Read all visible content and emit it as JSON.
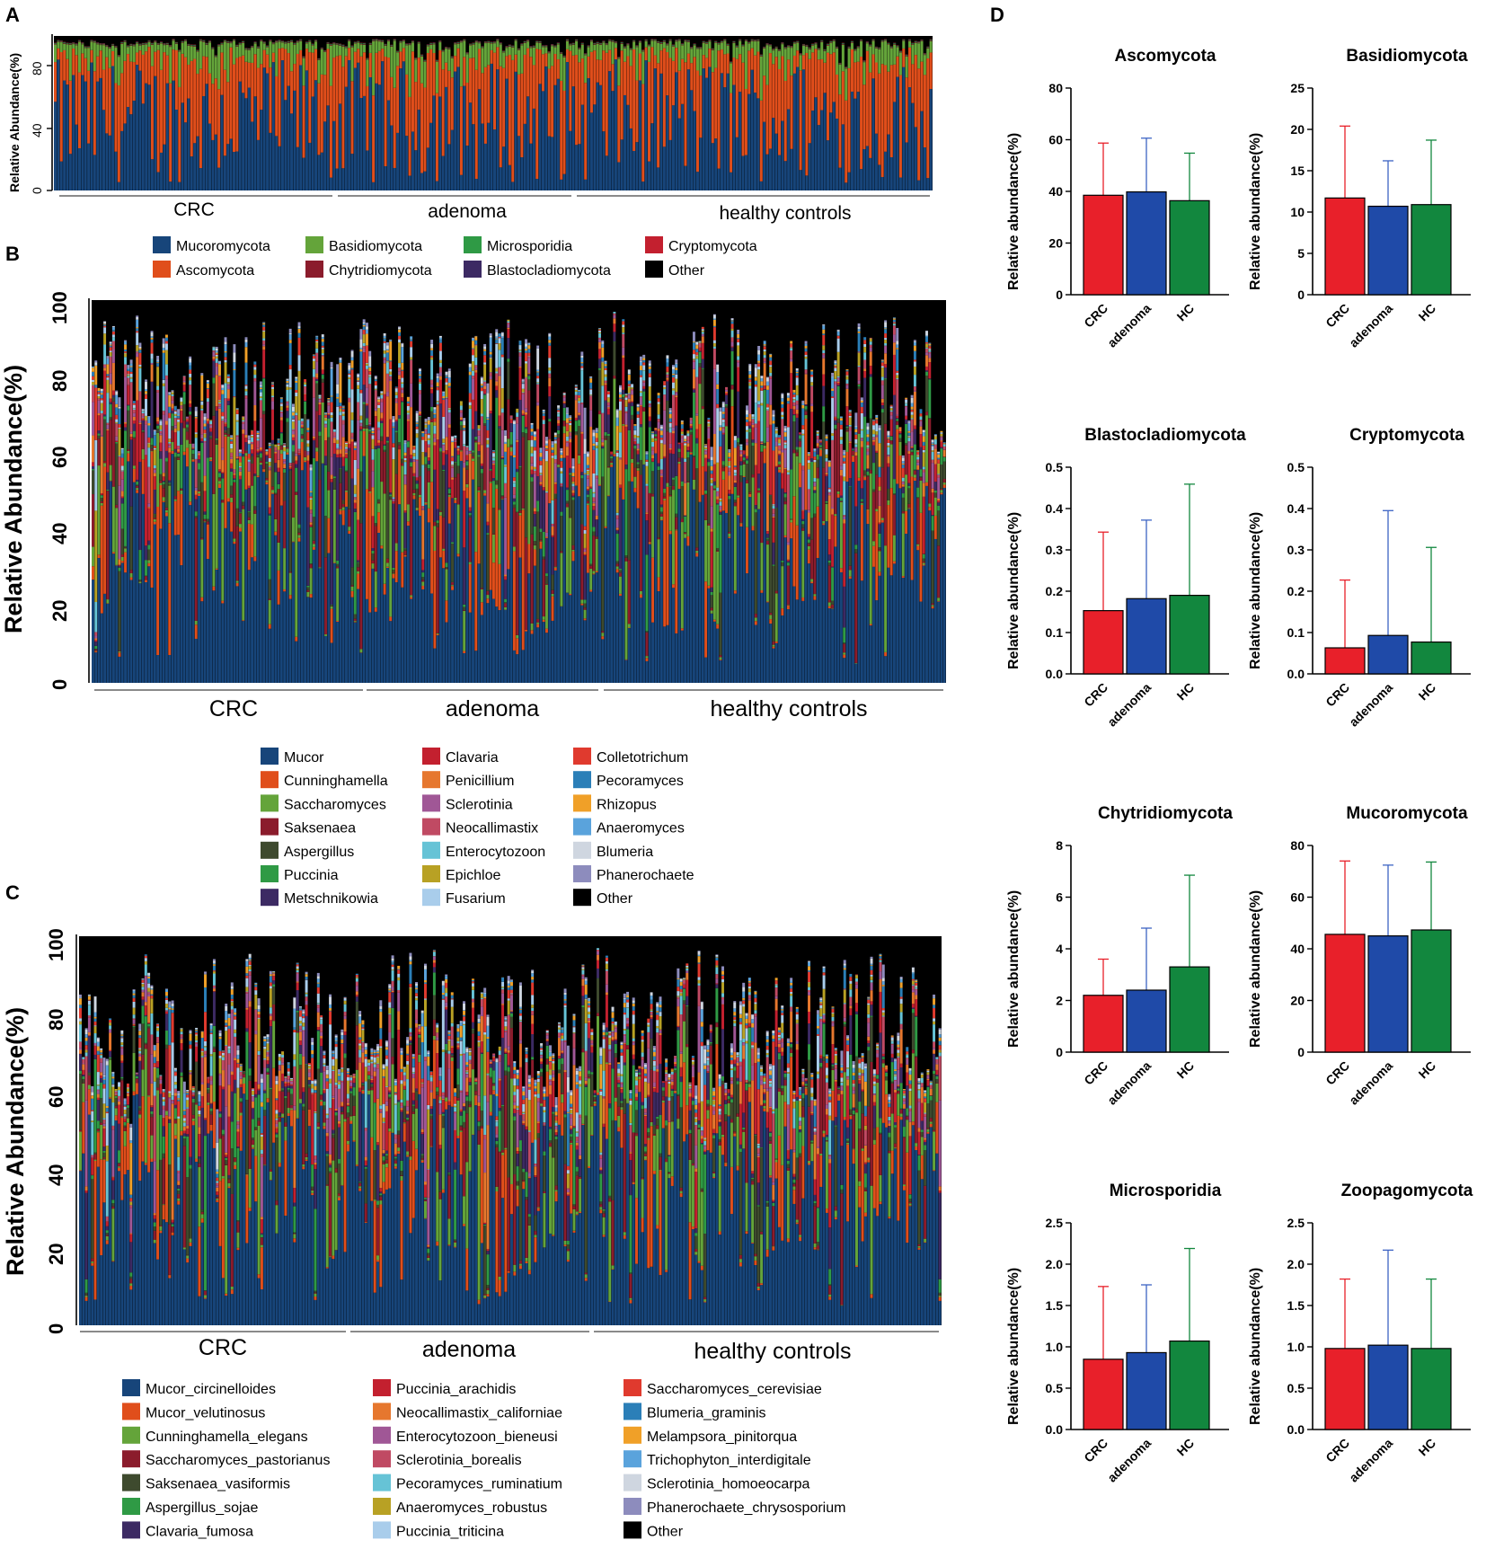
{
  "panels": {
    "a": {
      "letter": "A",
      "ylabel": "Relative Abundance(%)",
      "yticks": [
        "0",
        "40",
        "80"
      ],
      "groups": [
        "CRC",
        "adenoma",
        "healthy controls"
      ],
      "legend": [
        {
          "label": "Mucoromycota",
          "color": "#17457a"
        },
        {
          "label": "Ascomycota",
          "color": "#e04e1b"
        },
        {
          "label": "Basidiomycota",
          "color": "#64a43a"
        },
        {
          "label": "Chytridiomycota",
          "color": "#8b1c2c"
        },
        {
          "label": "Microsporidia",
          "color": "#2f9a45"
        },
        {
          "label": "Blastocladiomycota",
          "color": "#3c2a63"
        },
        {
          "label": "Cryptomycota",
          "color": "#c3202f"
        },
        {
          "label": "Other",
          "color": "#000000"
        }
      ]
    },
    "b": {
      "letter": "B",
      "ylabel": "Relative Abundance(%)",
      "yticks": [
        "0",
        "20",
        "40",
        "60",
        "80",
        "100"
      ],
      "groups": [
        "CRC",
        "adenoma",
        "healthy controls"
      ],
      "legend": [
        {
          "label": "Mucor",
          "color": "#17457a"
        },
        {
          "label": "Cunninghamella",
          "color": "#e04e1b"
        },
        {
          "label": "Saccharomyces",
          "color": "#64a43a"
        },
        {
          "label": "Saksenaea",
          "color": "#8b1c2c"
        },
        {
          "label": "Aspergillus",
          "color": "#3e4a2e"
        },
        {
          "label": "Puccinia",
          "color": "#2f9a45"
        },
        {
          "label": "Metschnikowia",
          "color": "#3c2a63"
        },
        {
          "label": "Clavaria",
          "color": "#c3202f"
        },
        {
          "label": "Penicillium",
          "color": "#e6772e"
        },
        {
          "label": "Sclerotinia",
          "color": "#a05796"
        },
        {
          "label": "Neocallimastix",
          "color": "#c04a63"
        },
        {
          "label": "Enterocytozoon",
          "color": "#66c3d6"
        },
        {
          "label": "Epichloe",
          "color": "#b8a124"
        },
        {
          "label": "Fusarium",
          "color": "#a9cdeb"
        },
        {
          "label": "Colletotrichum",
          "color": "#e03a2e"
        },
        {
          "label": "Pecoramyces",
          "color": "#2b7fb8"
        },
        {
          "label": "Rhizopus",
          "color": "#f0a028"
        },
        {
          "label": "Anaeromyces",
          "color": "#5aa3dc"
        },
        {
          "label": "Blumeria",
          "color": "#cfd6e0"
        },
        {
          "label": "Phanerochaete",
          "color": "#8d8cbd"
        },
        {
          "label": "Other",
          "color": "#000000"
        }
      ]
    },
    "c": {
      "letter": "C",
      "ylabel": "Relative Abundance(%)",
      "yticks": [
        "0",
        "20",
        "40",
        "60",
        "80",
        "100"
      ],
      "groups": [
        "CRC",
        "adenoma",
        "healthy controls"
      ],
      "legend": [
        {
          "label": "Mucor_circinelloides",
          "color": "#17457a"
        },
        {
          "label": "Mucor_velutinosus",
          "color": "#e04e1b"
        },
        {
          "label": "Cunninghamella_elegans",
          "color": "#64a43a"
        },
        {
          "label": "Saccharomyces_pastorianus",
          "color": "#8b1c2c"
        },
        {
          "label": "Saksenaea_vasiformis",
          "color": "#3e4a2e"
        },
        {
          "label": "Aspergillus_sojae",
          "color": "#2f9a45"
        },
        {
          "label": "Clavaria_fumosa",
          "color": "#3c2a63"
        },
        {
          "label": "Puccinia_arachidis",
          "color": "#c3202f"
        },
        {
          "label": "Neocallimastix_californiae",
          "color": "#e6772e"
        },
        {
          "label": "Enterocytozoon_bieneusi",
          "color": "#a05796"
        },
        {
          "label": "Sclerotinia_borealis",
          "color": "#c04a63"
        },
        {
          "label": "Pecoramyces_ruminatium",
          "color": "#66c3d6"
        },
        {
          "label": "Anaeromyces_robustus",
          "color": "#b8a124"
        },
        {
          "label": "Puccinia_triticina",
          "color": "#a9cdeb"
        },
        {
          "label": "Saccharomyces_cerevisiae",
          "color": "#e03a2e"
        },
        {
          "label": "Blumeria_graminis",
          "color": "#2b7fb8"
        },
        {
          "label": "Melampsora_pinitorqua",
          "color": "#f0a028"
        },
        {
          "label": "Trichophyton_interdigitale",
          "color": "#5aa3dc"
        },
        {
          "label": "Sclerotinia_homoeocarpa",
          "color": "#cfd6e0"
        },
        {
          "label": "Phanerochaete_chrysosporium",
          "color": "#8d8cbd"
        },
        {
          "label": "Other",
          "color": "#000000"
        }
      ]
    },
    "d": {
      "letter": "D",
      "ylabel": "Relative abundance(%)"
    }
  },
  "chart_data": [
    {
      "type": "bar",
      "stacked": true,
      "title": "",
      "ylabel": "Relative Abundance(%)",
      "ylim": [
        0,
        100
      ],
      "groups": [
        "CRC",
        "adenoma",
        "healthy controls"
      ],
      "note": "Panel A: per-sample phylum composition, ~300 samples; dominated by Mucoromycota and Ascomycota"
    },
    {
      "type": "bar",
      "stacked": true,
      "ylabel": "Relative Abundance(%)",
      "ylim": [
        0,
        100
      ],
      "groups": [
        "CRC",
        "adenoma",
        "healthy controls"
      ],
      "note": "Panel B: per-sample genus composition"
    },
    {
      "type": "bar",
      "stacked": true,
      "ylabel": "Relative Abundance(%)",
      "ylim": [
        0,
        100
      ],
      "groups": [
        "CRC",
        "adenoma",
        "healthy controls"
      ],
      "note": "Panel C: per-sample species composition"
    },
    {
      "type": "bar",
      "title": "Ascomycota",
      "ylabel": "Relative abundance(%)",
      "categories": [
        "CRC",
        "adenoma",
        "HC"
      ],
      "values": [
        38.5,
        39.8,
        36.4
      ],
      "errors": [
        58.7,
        60.6,
        54.8
      ],
      "ylim": [
        0,
        80
      ],
      "yticks": [
        "0",
        "20",
        "40",
        "60",
        "80"
      ]
    },
    {
      "type": "bar",
      "title": "Basidiomycota",
      "ylabel": "Relative abundance(%)",
      "categories": [
        "CRC",
        "adenoma",
        "HC"
      ],
      "values": [
        11.7,
        10.7,
        10.9
      ],
      "errors": [
        20.4,
        16.2,
        18.7
      ],
      "ylim": [
        0,
        25
      ],
      "yticks": [
        "0",
        "5",
        "10",
        "15",
        "20",
        "25"
      ]
    },
    {
      "type": "bar",
      "title": "Blastocladiomycota",
      "ylabel": "Relative abundance(%)",
      "categories": [
        "CRC",
        "adenoma",
        "HC"
      ],
      "values": [
        0.153,
        0.182,
        0.19
      ],
      "errors": [
        0.343,
        0.372,
        0.459
      ],
      "ylim": [
        0,
        0.5
      ],
      "yticks": [
        "0.0",
        "0.1",
        "0.2",
        "0.3",
        "0.4",
        "0.5"
      ]
    },
    {
      "type": "bar",
      "title": "Cryptomycota",
      "ylabel": "Relative abundance(%)",
      "categories": [
        "CRC",
        "adenoma",
        "HC"
      ],
      "values": [
        0.063,
        0.093,
        0.077
      ],
      "errors": [
        0.227,
        0.395,
        0.306
      ],
      "ylim": [
        0,
        0.5
      ],
      "yticks": [
        "0.0",
        "0.1",
        "0.2",
        "0.3",
        "0.4",
        "0.5"
      ]
    },
    {
      "type": "bar",
      "title": "Chytridiomycota",
      "ylabel": "Relative abundance(%)",
      "categories": [
        "CRC",
        "adenoma",
        "HC"
      ],
      "values": [
        2.2,
        2.4,
        3.3
      ],
      "errors": [
        3.6,
        4.8,
        6.85
      ],
      "ylim": [
        0,
        8
      ],
      "yticks": [
        "0",
        "2",
        "4",
        "6",
        "8"
      ]
    },
    {
      "type": "bar",
      "title": "Mucoromycota",
      "ylabel": "Relative abundance(%)",
      "categories": [
        "CRC",
        "adenoma",
        "HC"
      ],
      "values": [
        45.6,
        45.0,
        47.3
      ],
      "errors": [
        74.0,
        72.4,
        73.6
      ],
      "ylim": [
        0,
        80
      ],
      "yticks": [
        "0",
        "20",
        "40",
        "60",
        "80"
      ]
    },
    {
      "type": "bar",
      "title": "Microsporidia",
      "ylabel": "Relative abundance(%)",
      "categories": [
        "CRC",
        "adenoma",
        "HC"
      ],
      "values": [
        0.85,
        0.93,
        1.07
      ],
      "errors": [
        1.73,
        1.75,
        2.19
      ],
      "ylim": [
        0,
        2.5
      ],
      "yticks": [
        "0.0",
        "0.5",
        "1.0",
        "1.5",
        "2.0",
        "2.5"
      ]
    },
    {
      "type": "bar",
      "title": "Zoopagomycota",
      "ylabel": "Relative abundance(%)",
      "categories": [
        "CRC",
        "adenoma",
        "HC"
      ],
      "values": [
        0.98,
        1.02,
        0.98
      ],
      "errors": [
        1.82,
        2.17,
        1.82
      ],
      "ylim": [
        0,
        2.5
      ],
      "yticks": [
        "0.0",
        "0.5",
        "1.0",
        "1.5",
        "2.0",
        "2.5"
      ]
    }
  ],
  "colors": {
    "CRC": "#e8202a",
    "adenoma": "#1f4aa8",
    "HC": "#12873e",
    "CRC_err": "#e8202a",
    "adenoma_err": "#3d64c4",
    "HC_err": "#12873e"
  }
}
